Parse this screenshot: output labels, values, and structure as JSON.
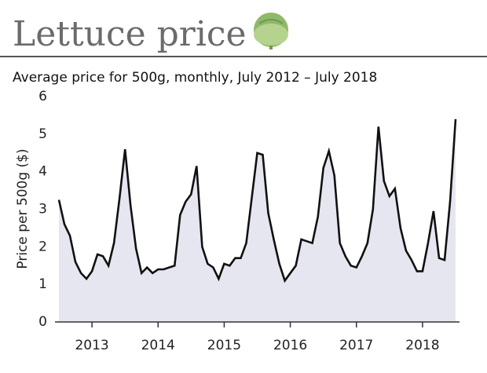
{
  "chart_data": {
    "type": "line",
    "title": "Lettuce price",
    "subtitle": "Average price for 500g, monthly, July 2012 – July 2018",
    "y_label": "Price per 500g ($)",
    "categories": [
      null,
      null,
      null,
      null,
      null,
      null,
      "2013",
      null,
      null,
      null,
      null,
      null,
      null,
      null,
      null,
      null,
      null,
      null,
      "2014",
      null,
      null,
      null,
      null,
      null,
      null,
      null,
      null,
      null,
      null,
      null,
      "2015",
      null,
      null,
      null,
      null,
      null,
      null,
      null,
      null,
      null,
      null,
      null,
      "2016",
      null,
      null,
      null,
      null,
      null,
      null,
      null,
      null,
      null,
      null,
      null,
      "2017",
      null,
      null,
      null,
      null,
      null,
      null,
      null,
      null,
      null,
      null,
      null,
      "2018",
      null,
      null,
      null,
      null,
      null,
      null
    ],
    "series": [
      {
        "name": "Price",
        "color": "#111111",
        "fill": "#e6e6f0",
        "values": [
          3.25,
          2.6,
          2.3,
          1.6,
          1.3,
          1.15,
          1.35,
          1.8,
          1.75,
          1.5,
          2.1,
          3.3,
          4.6,
          3.1,
          1.95,
          1.3,
          1.45,
          1.3,
          1.4,
          1.4,
          1.45,
          1.5,
          2.85,
          3.2,
          3.4,
          4.15,
          2.0,
          1.55,
          1.45,
          1.15,
          1.55,
          1.5,
          1.7,
          1.7,
          2.1,
          3.3,
          4.5,
          4.45,
          2.9,
          2.2,
          1.55,
          1.1,
          1.3,
          1.5,
          2.2,
          2.15,
          2.1,
          2.8,
          4.1,
          4.55,
          3.9,
          2.1,
          1.75,
          1.5,
          1.45,
          1.75,
          2.1,
          3.0,
          5.2,
          3.75,
          3.35,
          3.55,
          2.5,
          1.9,
          1.65,
          1.35,
          1.35,
          2.1,
          2.95,
          1.7,
          1.65,
          3.2,
          5.4
        ]
      }
    ],
    "ylim": [
      0,
      6
    ],
    "yticks": [
      0,
      1,
      2,
      3,
      4,
      5,
      6
    ],
    "grid": false
  }
}
